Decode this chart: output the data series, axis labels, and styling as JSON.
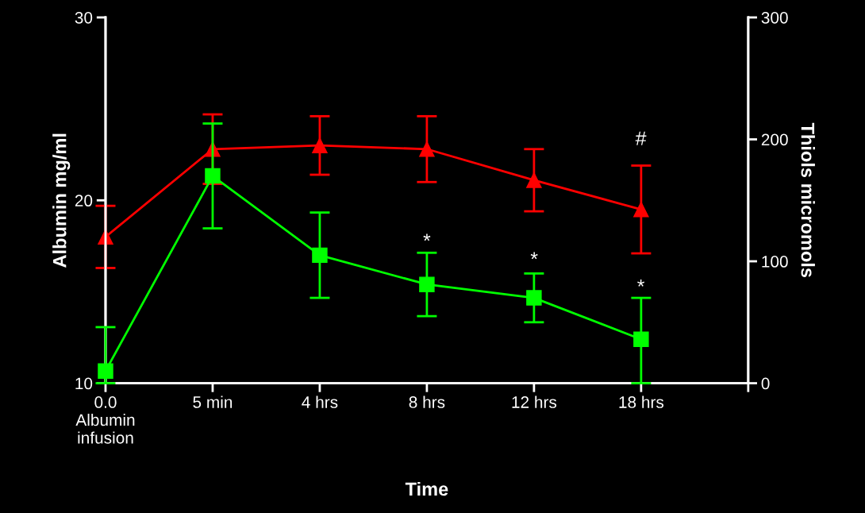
{
  "chart_data": {
    "type": "line",
    "xlabel": "Time",
    "ylabel": "Albumin mg/ml",
    "y2label": "Thiols micromols",
    "categories": [
      "0.0\nAlbumin\ninfusion",
      "5 min",
      "4 hrs",
      "8 hrs",
      "12 hrs",
      "18 hrs",
      null
    ],
    "series": [
      {
        "color": "#ff0000",
        "marker": "triangle",
        "values": [
          18.0,
          22.8,
          23.0,
          22.8,
          21.1,
          19.5,
          null
        ],
        "errors": [
          1.7,
          1.9,
          1.6,
          1.8,
          1.7,
          2.4,
          null
        ]
      },
      {
        "color": "#00ff00",
        "marker": "square",
        "axis": "y2",
        "values": [
          10,
          170,
          105,
          81,
          70,
          36,
          null
        ],
        "errors": [
          [
            0,
            46
          ],
          43,
          35,
          26,
          20,
          [
            0,
            70
          ],
          null
        ]
      }
    ],
    "ylim": [
      10,
      30
    ],
    "yticks": [
      10,
      20,
      30
    ],
    "y2lim": [
      0,
      300
    ],
    "y2ticks": [
      0,
      100,
      200,
      300
    ],
    "line_style": "solid",
    "grid": false,
    "legend": false,
    "annotations": [
      "*",
      "*",
      "*",
      "#"
    ]
  }
}
